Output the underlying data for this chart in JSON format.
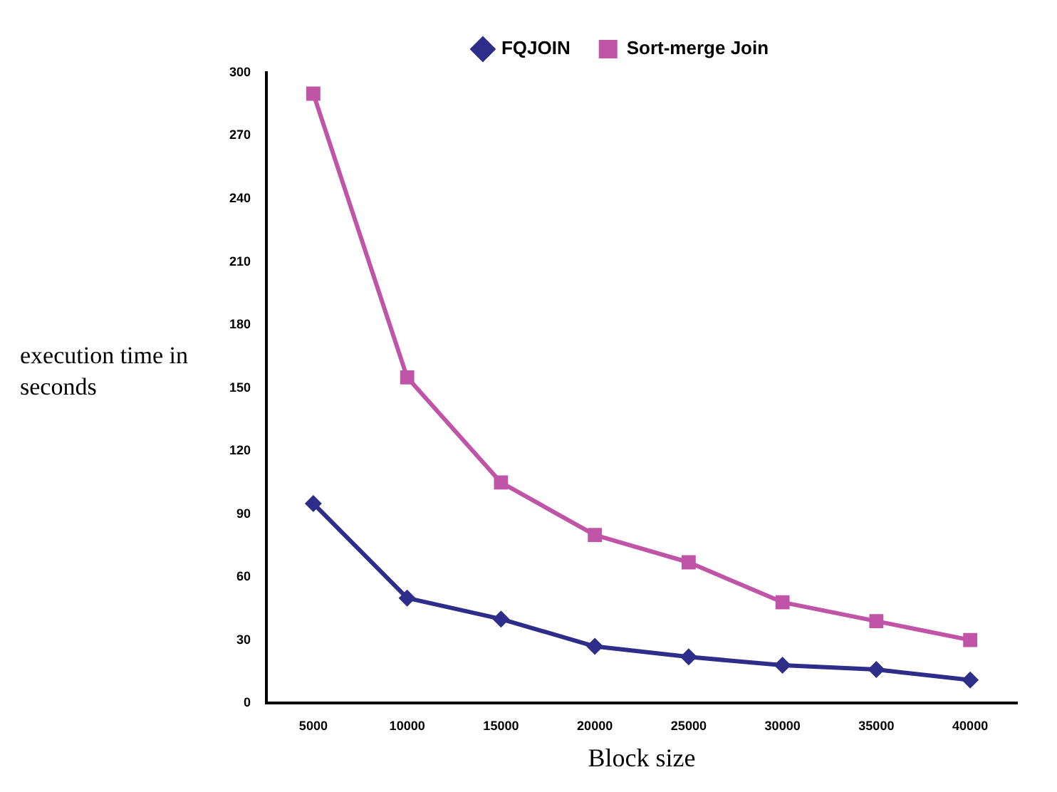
{
  "chart_data": {
    "type": "line",
    "xlabel": "Block size",
    "ylabel": "execution time in seconds",
    "categories": [
      "5000",
      "10000",
      "15000",
      "20000",
      "25000",
      "30000",
      "35000",
      "40000"
    ],
    "series": [
      {
        "name": "FQJOIN",
        "color": "#2e2e8a",
        "marker": "diamond",
        "values": [
          95,
          50,
          40,
          27,
          22,
          18,
          16,
          11
        ]
      },
      {
        "name": "Sort-merge Join",
        "color": "#c055a8",
        "marker": "square",
        "values": [
          290,
          155,
          105,
          80,
          67,
          48,
          39,
          30
        ]
      }
    ],
    "ylim": [
      0,
      300
    ],
    "yticks": [
      0,
      30,
      60,
      90,
      120,
      150,
      180,
      210,
      240,
      270,
      300
    ],
    "grid": false,
    "legend": "top",
    "line_style": "solid"
  }
}
